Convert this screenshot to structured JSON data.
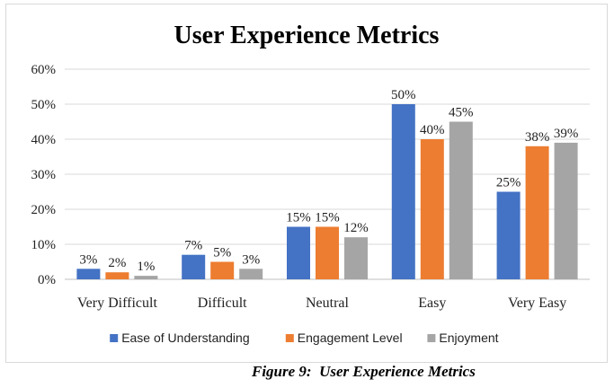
{
  "chart_data": {
    "type": "bar",
    "title": "User Experience  Metrics",
    "categories": [
      "Very Difficult",
      "Difficult",
      "Neutral",
      "Easy",
      "Very Easy"
    ],
    "series": [
      {
        "name": "Ease of Understanding",
        "color": "#4472c4",
        "values": [
          3,
          7,
          15,
          50,
          25
        ],
        "labels": [
          "3%",
          "7%",
          "15%",
          "50%",
          "25%"
        ]
      },
      {
        "name": "Engagement Level",
        "color": "#ed7d31",
        "values": [
          2,
          5,
          15,
          40,
          38
        ],
        "labels": [
          "2%",
          "5%",
          "15%",
          "40%",
          "38%"
        ]
      },
      {
        "name": "Enjoyment",
        "color": "#a5a5a5",
        "values": [
          1,
          3,
          12,
          45,
          39
        ],
        "labels": [
          "1%",
          "3%",
          "12%",
          "45%",
          "39%"
        ]
      }
    ],
    "y_ticks": [
      "0%",
      "10%",
      "20%",
      "30%",
      "40%",
      "50%",
      "60%"
    ],
    "ylim": [
      0,
      60
    ],
    "grid": true,
    "legend_position": "bottom"
  },
  "caption": "Figure 9:  User Experience Metrics"
}
